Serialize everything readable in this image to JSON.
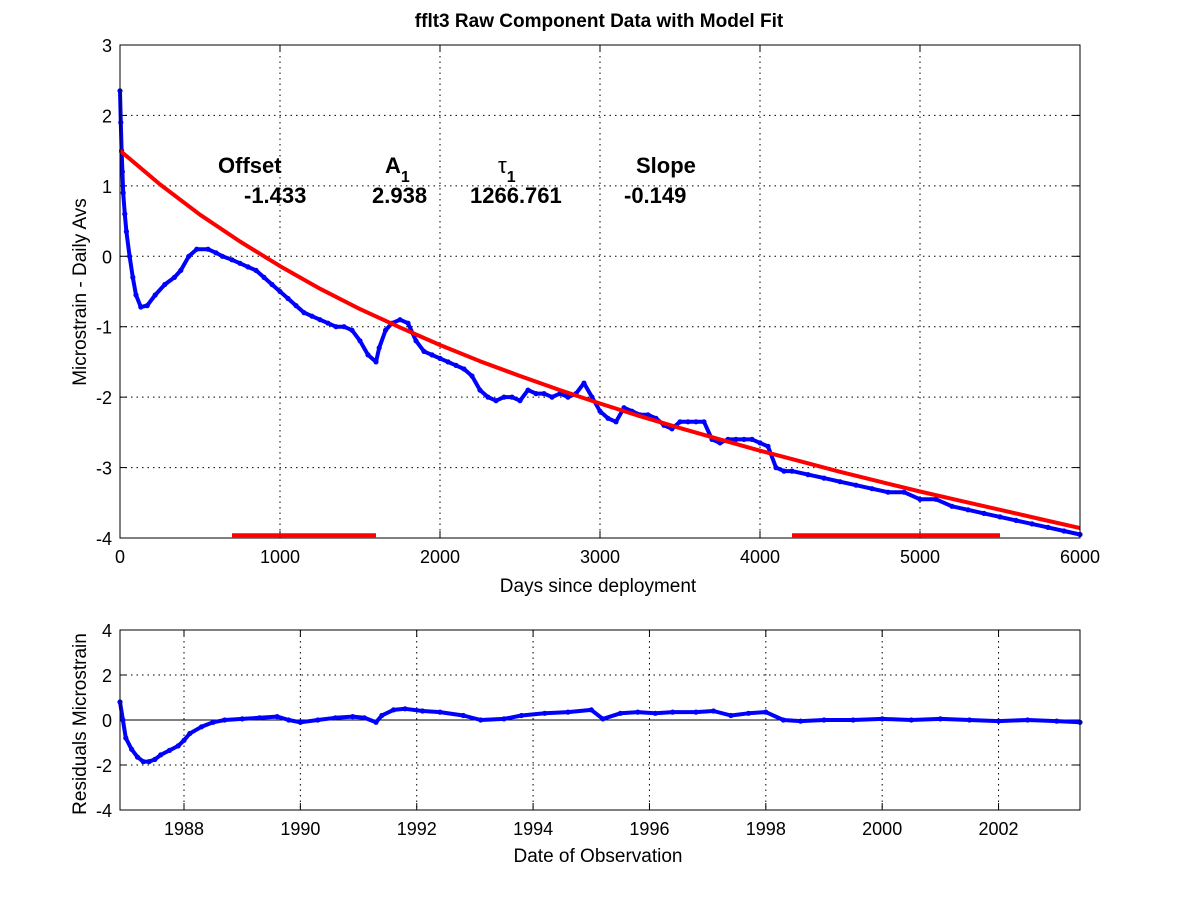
{
  "chart_data": [
    {
      "type": "scatter",
      "title": "fflt3  Raw Component Data with Model Fit",
      "xlabel": "Days since deployment",
      "ylabel": "Microstrain - Daily Avs",
      "xlim": [
        0,
        6000
      ],
      "ylim": [
        -4,
        3
      ],
      "xticks": [
        "0",
        "1000",
        "2000",
        "3000",
        "4000",
        "5000",
        "6000"
      ],
      "yticks": [
        "3",
        "2",
        "1",
        "0",
        "-1",
        "-2",
        "-3",
        "-4"
      ],
      "grid": true,
      "colors": {
        "data": "#0000ff",
        "fit": "#ff0000"
      },
      "parameters": [
        {
          "label": "Offset",
          "value": "-1.433"
        },
        {
          "label": "A",
          "sub": "1",
          "value": "2.938"
        },
        {
          "label": "τ",
          "sub": "1",
          "value": "1266.761"
        },
        {
          "label": "Slope",
          "value": "-0.149"
        }
      ],
      "series": [
        {
          "style": "markers",
          "color": "#0000ff",
          "x": [
            0,
            5,
            10,
            15,
            20,
            30,
            40,
            60,
            80,
            100,
            130,
            170,
            220,
            280,
            340,
            380,
            430,
            480,
            550,
            600,
            640,
            700,
            750,
            800,
            850,
            900,
            950,
            1000,
            1050,
            1100,
            1150,
            1200,
            1250,
            1300,
            1350,
            1400,
            1450,
            1500,
            1550,
            1600,
            1620,
            1660,
            1700,
            1750,
            1800,
            1850,
            1900,
            1950,
            2000,
            2050,
            2100,
            2150,
            2200,
            2250,
            2300,
            2350,
            2400,
            2450,
            2500,
            2550,
            2600,
            2650,
            2700,
            2750,
            2800,
            2850,
            2900,
            2950,
            3000,
            3050,
            3100,
            3150,
            3200,
            3250,
            3300,
            3350,
            3400,
            3450,
            3500,
            3550,
            3600,
            3650,
            3700,
            3750,
            3800,
            3850,
            3900,
            3950,
            4000,
            4050,
            4100,
            4150,
            4200,
            4300,
            4400,
            4500,
            4600,
            4700,
            4800,
            4900,
            5000,
            5100,
            5200,
            5300,
            5400,
            5500,
            5600,
            5700,
            5800,
            5900,
            6000
          ],
          "y": [
            2.35,
            1.9,
            1.5,
            1.2,
            0.9,
            0.6,
            0.35,
            0.0,
            -0.3,
            -0.55,
            -0.72,
            -0.7,
            -0.55,
            -0.4,
            -0.3,
            -0.2,
            0.0,
            0.1,
            0.1,
            0.05,
            0.0,
            -0.05,
            -0.1,
            -0.15,
            -0.2,
            -0.3,
            -0.4,
            -0.5,
            -0.6,
            -0.7,
            -0.8,
            -0.85,
            -0.9,
            -0.95,
            -1.0,
            -1.0,
            -1.05,
            -1.2,
            -1.4,
            -1.5,
            -1.3,
            -1.05,
            -0.95,
            -0.9,
            -0.95,
            -1.2,
            -1.35,
            -1.4,
            -1.45,
            -1.5,
            -1.55,
            -1.6,
            -1.7,
            -1.9,
            -2.0,
            -2.05,
            -2.0,
            -2.0,
            -2.05,
            -1.9,
            -1.95,
            -1.95,
            -2.0,
            -1.95,
            -2.0,
            -1.95,
            -1.8,
            -2.0,
            -2.2,
            -2.3,
            -2.35,
            -2.15,
            -2.2,
            -2.25,
            -2.25,
            -2.3,
            -2.4,
            -2.45,
            -2.35,
            -2.35,
            -2.35,
            -2.35,
            -2.6,
            -2.65,
            -2.6,
            -2.6,
            -2.6,
            -2.6,
            -2.65,
            -2.7,
            -3.0,
            -3.05,
            -3.05,
            -3.1,
            -3.15,
            -3.2,
            -3.25,
            -3.3,
            -3.35,
            -3.35,
            -3.45,
            -3.45,
            -3.55,
            -3.6,
            -3.65,
            -3.7,
            -3.75,
            -3.8,
            -3.85,
            -3.9,
            -3.95
          ]
        },
        {
          "style": "line",
          "color": "#ff0000",
          "x": [
            0,
            250,
            500,
            750,
            1000,
            1250,
            1500,
            1750,
            2000,
            2250,
            2500,
            2750,
            3000,
            3250,
            3500,
            3750,
            4000,
            4250,
            4500,
            4750,
            5000,
            5250,
            5500,
            5750,
            6000
          ],
          "y": [
            1.5,
            1.02,
            0.59,
            0.21,
            -0.14,
            -0.46,
            -0.75,
            -1.01,
            -1.26,
            -1.49,
            -1.7,
            -1.9,
            -2.09,
            -2.27,
            -2.44,
            -2.6,
            -2.76,
            -2.91,
            -3.06,
            -3.2,
            -3.34,
            -3.47,
            -3.6,
            -3.73,
            -3.86
          ]
        },
        {
          "style": "line",
          "color": "#ff0000",
          "x": [
            700,
            1600
          ],
          "y": [
            -3.96,
            -3.96
          ]
        },
        {
          "style": "line",
          "color": "#ff0000",
          "x": [
            4200,
            5500
          ],
          "y": [
            -3.96,
            -3.96
          ]
        }
      ]
    },
    {
      "type": "scatter",
      "xlabel": "Date of Observation",
      "ylabel": "Residuals Microstrain",
      "xlim": [
        1986.9,
        2003.4
      ],
      "ylim": [
        -4,
        4
      ],
      "xticks": [
        "1988",
        "1990",
        "1992",
        "1994",
        "1996",
        "1998",
        "2000",
        "2002"
      ],
      "yticks": [
        "4",
        "2",
        "0",
        "-2",
        "-4"
      ],
      "grid": true,
      "zero_line": true,
      "series": [
        {
          "style": "markers",
          "color": "#0000ff",
          "x": [
            1986.9,
            1986.95,
            1987.0,
            1987.1,
            1987.2,
            1987.3,
            1987.4,
            1987.5,
            1987.6,
            1987.75,
            1987.9,
            1988.0,
            1988.1,
            1988.3,
            1988.5,
            1988.7,
            1989.0,
            1989.3,
            1989.6,
            1989.8,
            1990.0,
            1990.3,
            1990.6,
            1990.9,
            1991.1,
            1991.3,
            1991.4,
            1991.6,
            1991.8,
            1992.1,
            1992.4,
            1992.8,
            1993.1,
            1993.5,
            1993.8,
            1994.2,
            1994.6,
            1995.0,
            1995.2,
            1995.5,
            1995.8,
            1996.1,
            1996.4,
            1996.8,
            1997.1,
            1997.4,
            1997.7,
            1998.0,
            1998.3,
            1998.6,
            1999.0,
            1999.5,
            2000.0,
            2000.5,
            2001.0,
            2001.5,
            2002.0,
            2002.5,
            2003.0,
            2003.4
          ],
          "y": [
            0.8,
            0.0,
            -0.8,
            -1.3,
            -1.65,
            -1.85,
            -1.85,
            -1.75,
            -1.55,
            -1.35,
            -1.15,
            -0.9,
            -0.6,
            -0.3,
            -0.1,
            0.0,
            0.05,
            0.1,
            0.15,
            0.0,
            -0.1,
            0.0,
            0.1,
            0.15,
            0.1,
            -0.1,
            0.2,
            0.45,
            0.5,
            0.4,
            0.35,
            0.2,
            0.0,
            0.05,
            0.2,
            0.3,
            0.35,
            0.45,
            0.05,
            0.3,
            0.35,
            0.3,
            0.35,
            0.35,
            0.4,
            0.2,
            0.3,
            0.35,
            0.0,
            -0.05,
            0.0,
            0.0,
            0.05,
            0.0,
            0.05,
            0.0,
            -0.05,
            0.0,
            -0.05,
            -0.1
          ]
        }
      ]
    }
  ]
}
